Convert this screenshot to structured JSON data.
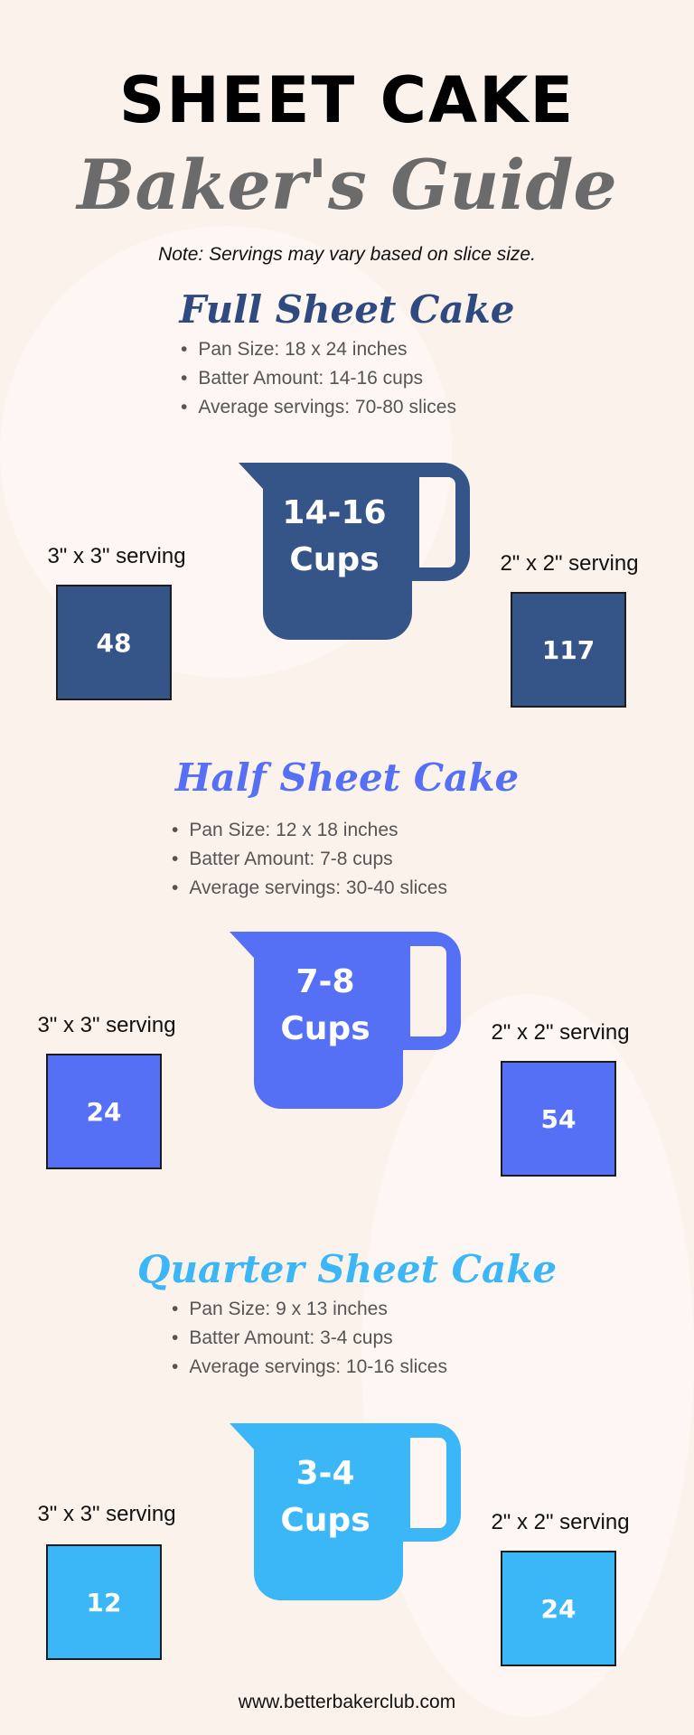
{
  "header": {
    "title": "SHEET CAKE",
    "subtitle": "Baker's Guide",
    "note": "Note: Servings may vary based on slice size."
  },
  "sections": [
    {
      "title": "Full Sheet Cake",
      "color": "#355588",
      "title_color": "#2f4a80",
      "bullets": [
        "Pan Size: 18 x 24 inches",
        "Batter Amount: 14-16 cups",
        "Average servings: 70-80 slices"
      ],
      "pitcher_line1": "14-16",
      "pitcher_line2": "Cups",
      "left_label": "3\" x 3\" serving",
      "left_value": "48",
      "right_label": "2\" x 2\" serving",
      "right_value": "117"
    },
    {
      "title": "Half Sheet Cake",
      "color": "#556ff5",
      "title_color": "#556ff5",
      "bullets": [
        "Pan Size: 12 x 18 inches",
        "Batter Amount: 7-8 cups",
        "Average servings: 30-40 slices"
      ],
      "pitcher_line1": "7-8",
      "pitcher_line2": "Cups",
      "left_label": "3\" x 3\" serving",
      "left_value": "24",
      "right_label": "2\" x 2\" serving",
      "right_value": "54"
    },
    {
      "title": "Quarter Sheet Cake",
      "color": "#3bb6f7",
      "title_color": "#3bb6f7",
      "bullets": [
        "Pan Size: 9 x 13 inches",
        "Batter Amount: 3-4 cups",
        "Average servings: 10-16 slices"
      ],
      "pitcher_line1": "3-4",
      "pitcher_line2": "Cups",
      "left_label": "3\" x 3\" serving",
      "left_value": "12",
      "right_label": "2\" x 2\" serving",
      "right_value": "24"
    }
  ],
  "footer": {
    "url": "www.betterbakerclub.com"
  }
}
